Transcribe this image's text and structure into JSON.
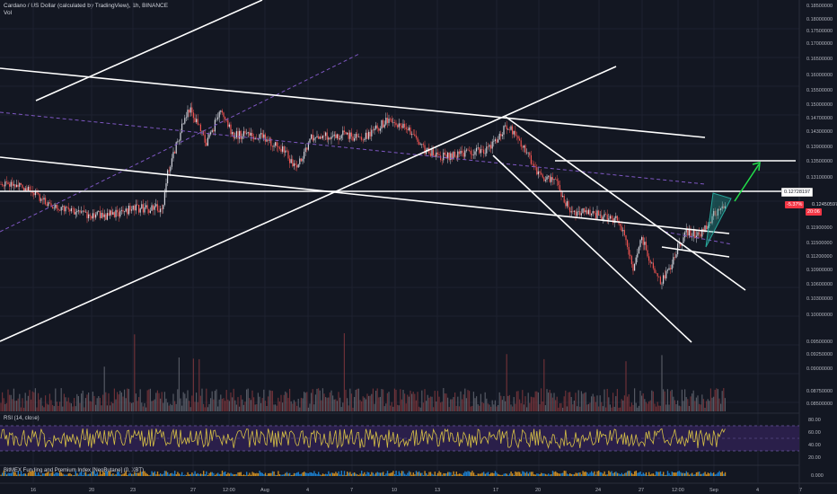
{
  "header": {
    "title": "Cardano / US Dollar (calculated by TradingView), 1h, BINANCE",
    "volume_label": "Vol"
  },
  "panes": {
    "rsi_label": "RSI (14, close)",
    "bitmex_label": "BitMEX Funding and Premium Index [NeoButane] (0, XBT)"
  },
  "price_axis": {
    "labels": [
      "0.18500000",
      "0.18000000",
      "0.17500000",
      "0.17000000",
      "0.16500000",
      "0.16000000",
      "0.15500000",
      "0.15000000",
      "0.14700000",
      "0.14300000",
      "0.13900000",
      "0.13500000",
      "0.13100000",
      "0.11900000",
      "0.11500000",
      "0.11200000",
      "0.10900000",
      "0.10600000",
      "0.10300000",
      "0.10000000",
      "0.09500000",
      "0.09250000",
      "0.09000000",
      "0.08750000",
      "0.08500000"
    ],
    "level_tag": "0.12728197",
    "change_tag": "-5.37%",
    "price_tag_clipped": "0.12450597",
    "countdown_tag": "20:06"
  },
  "rsi_axis": {
    "labels": [
      "80.00",
      "60.00",
      "40.00",
      "20.00"
    ]
  },
  "bitmex_axis": {
    "labels": [
      "0.000"
    ]
  },
  "time_axis": {
    "labels": [
      "16",
      "20",
      "23",
      "27",
      "12:00",
      "Aug",
      "4",
      "7",
      "10",
      "13",
      "17",
      "20",
      "24",
      "27",
      "12:00",
      "Sep",
      "4",
      "7"
    ]
  },
  "colors": {
    "background": "#131722",
    "up_candle": "#d1d4dc",
    "down_candle": "#ef5350",
    "trendline": "#ffffff",
    "projection_arrow": "#22e04a",
    "wedge_fill": "#26a69a",
    "rsi_band": "#2a1f4a",
    "rsi_line": "#d8c245",
    "dashed_line": "#7e57c2"
  }
}
